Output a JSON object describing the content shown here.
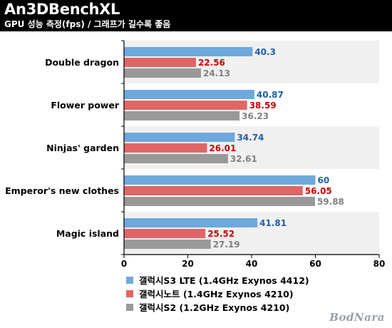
{
  "header": {
    "title": "An3DBenchXL",
    "subtitle": "GPU 성능 측정(fps) / 그래프가 길수록 좋음"
  },
  "colors": {
    "series": [
      "#6fa8dc",
      "#e06666",
      "#999999"
    ],
    "value_labels": [
      "#1f5fa8",
      "#cc0000",
      "#808080"
    ],
    "band": "#f0f0f0"
  },
  "chart_data": {
    "type": "bar",
    "orientation": "horizontal",
    "title": "An3DBenchXL",
    "subtitle": "GPU 성능 측정(fps) / 그래프가 길수록 좋음",
    "categories": [
      "Double dragon",
      "Flower power",
      "Ninjas' garden",
      "Emperor's new clothes",
      "Magic island"
    ],
    "series": [
      {
        "name": "갤럭시S3 LTE (1.4GHz Exynos 4412)",
        "values": [
          40.3,
          40.87,
          34.74,
          60,
          41.81
        ]
      },
      {
        "name": "갤럭시노트 (1.4GHz Exynos 4210)",
        "values": [
          22.56,
          38.59,
          26.01,
          56.05,
          25.52
        ]
      },
      {
        "name": "갤럭시S2 (1.2GHz Exynos 4210)",
        "values": [
          24.13,
          36.23,
          32.61,
          59.88,
          27.19
        ]
      }
    ],
    "value_labels": [
      [
        "40.3",
        "40.87",
        "34.74",
        "60",
        "41.81"
      ],
      [
        "22.56",
        "38.59",
        "26.01",
        "56.05",
        "25.52"
      ],
      [
        "24.13",
        "36.23",
        "32.61",
        "59.88",
        "27.19"
      ]
    ],
    "xlim": [
      0,
      80
    ],
    "xticks": [
      "0",
      "20",
      "40",
      "60",
      "80"
    ],
    "grid": false,
    "legend_position": "bottom"
  },
  "watermark": "BodNara"
}
